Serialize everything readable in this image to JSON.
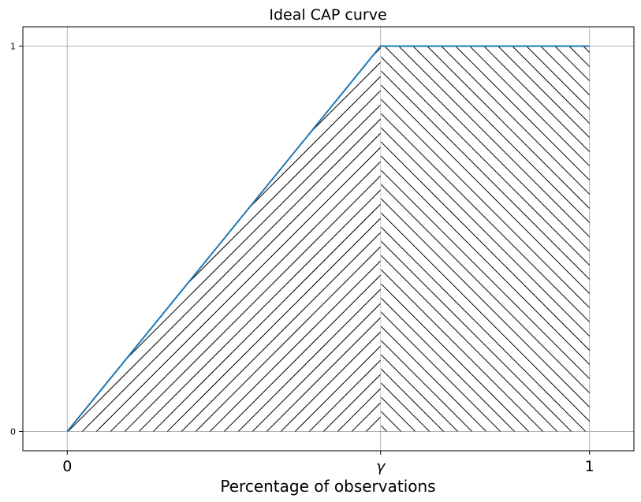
{
  "chart_data": {
    "type": "area",
    "title": "Ideal CAP curve",
    "xlabel": "Percentage of observations",
    "ylabel": "",
    "xlim": [
      -0.085,
      1.085
    ],
    "ylim": [
      -0.05,
      1.05
    ],
    "grid": true,
    "gamma": 0.6,
    "x_ticks": [
      {
        "value": 0,
        "label": "0"
      },
      {
        "value": 0.6,
        "label": "γ"
      },
      {
        "value": 1,
        "label": "1"
      }
    ],
    "y_ticks": [
      {
        "value": 0,
        "label": "0"
      },
      {
        "value": 1,
        "label": "1"
      }
    ],
    "series": [
      {
        "x": [
          0,
          0.6,
          1
        ],
        "y": [
          0,
          1,
          1
        ]
      }
    ],
    "hatched_regions": [
      {
        "x": [
          0,
          0.6
        ],
        "hatch": "/"
      },
      {
        "x": [
          0.6,
          1
        ],
        "hatch": "\\"
      }
    ]
  },
  "colors": {
    "line": "#1f77b4",
    "hatch": "#000000",
    "grid": "#b0b0b0",
    "frame": "#000000"
  }
}
